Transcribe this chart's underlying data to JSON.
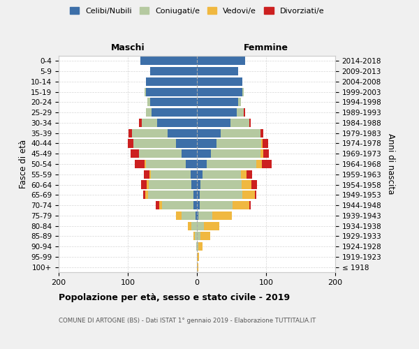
{
  "age_groups": [
    "100+",
    "95-99",
    "90-94",
    "85-89",
    "80-84",
    "75-79",
    "70-74",
    "65-69",
    "60-64",
    "55-59",
    "50-54",
    "45-49",
    "40-44",
    "35-39",
    "30-34",
    "25-29",
    "20-24",
    "15-19",
    "10-14",
    "5-9",
    "0-4"
  ],
  "birth_years": [
    "≤ 1918",
    "1919-1923",
    "1924-1928",
    "1929-1933",
    "1934-1938",
    "1939-1943",
    "1944-1948",
    "1949-1953",
    "1954-1958",
    "1959-1963",
    "1964-1968",
    "1969-1973",
    "1974-1978",
    "1979-1983",
    "1984-1988",
    "1989-1993",
    "1994-1998",
    "1999-2003",
    "2004-2008",
    "2009-2013",
    "2014-2018"
  ],
  "colors": {
    "celibi": "#3d6fa8",
    "coniugati": "#b5c9a0",
    "vedovi": "#f0b840",
    "divorziati": "#cc2020"
  },
  "maschi": {
    "celibi": [
      0,
      0,
      0,
      0,
      0,
      2,
      5,
      5,
      8,
      9,
      16,
      22,
      30,
      42,
      58,
      66,
      68,
      74,
      74,
      68,
      82
    ],
    "coniugati": [
      0,
      0,
      1,
      3,
      8,
      20,
      46,
      66,
      62,
      58,
      58,
      62,
      62,
      52,
      22,
      8,
      4,
      2,
      0,
      0,
      0
    ],
    "vedovi": [
      0,
      0,
      0,
      2,
      5,
      8,
      4,
      4,
      3,
      2,
      2,
      0,
      0,
      0,
      0,
      0,
      0,
      0,
      0,
      0,
      0
    ],
    "divorziati": [
      0,
      0,
      0,
      0,
      0,
      0,
      5,
      3,
      8,
      8,
      14,
      12,
      8,
      5,
      4,
      0,
      0,
      0,
      0,
      0,
      0
    ]
  },
  "femmine": {
    "celibi": [
      0,
      0,
      0,
      0,
      0,
      2,
      4,
      4,
      5,
      8,
      14,
      20,
      28,
      34,
      48,
      58,
      60,
      66,
      66,
      60,
      70
    ],
    "coniugati": [
      0,
      0,
      2,
      5,
      10,
      20,
      48,
      62,
      60,
      56,
      72,
      72,
      65,
      58,
      28,
      10,
      4,
      2,
      0,
      0,
      0
    ],
    "vedovi": [
      2,
      3,
      6,
      14,
      22,
      28,
      24,
      18,
      14,
      8,
      8,
      4,
      2,
      0,
      0,
      0,
      0,
      0,
      0,
      0,
      0
    ],
    "divorziati": [
      0,
      0,
      0,
      0,
      0,
      0,
      2,
      2,
      8,
      8,
      14,
      8,
      8,
      4,
      2,
      2,
      0,
      0,
      0,
      0,
      0
    ]
  },
  "title": "Popolazione per età, sesso e stato civile - 2019",
  "subtitle": "COMUNE DI ARTOGNE (BS) - Dati ISTAT 1° gennaio 2019 - Elaborazione TUTTITALIA.IT",
  "label_maschi": "Maschi",
  "label_femmine": "Femmine",
  "ylabel_left": "Fasce di età",
  "ylabel_right": "Anni di nascita",
  "xlim": 200,
  "legend_labels": [
    "Celibi/Nubili",
    "Coniugati/e",
    "Vedovi/e",
    "Divorziati/e"
  ],
  "background_color": "#f0f0f0",
  "plot_bg_color": "#ffffff"
}
